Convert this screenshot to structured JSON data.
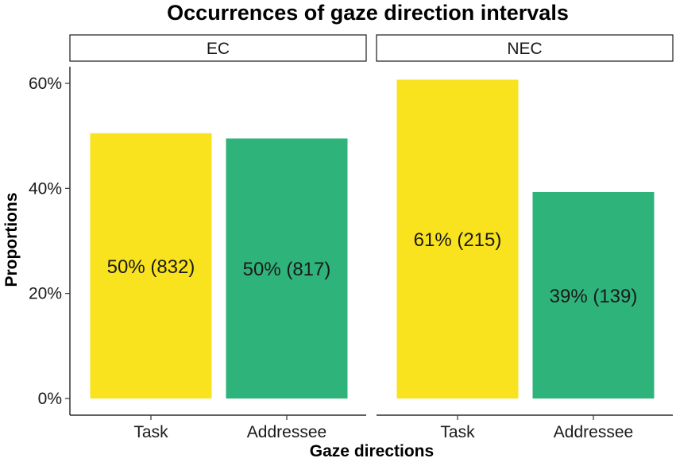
{
  "chart_data": {
    "type": "bar",
    "title": "Occurrences of gaze direction intervals",
    "xlabel": "Gaze directions",
    "ylabel": "Proportions",
    "ylim": [
      0,
      60
    ],
    "yticks": [
      "0%",
      "20%",
      "40%",
      "60%"
    ],
    "categories": [
      "Task",
      "Addressee"
    ],
    "colors": {
      "Task": "#F9E21E",
      "Addressee": "#2EB37B"
    },
    "panels": [
      {
        "name": "EC",
        "values": [
          50.5,
          49.5
        ],
        "labels": [
          "50% (832)",
          "50% (817)"
        ]
      },
      {
        "name": "NEC",
        "values": [
          60.7,
          39.3
        ],
        "labels": [
          "61% (215)",
          "39% (139)"
        ]
      }
    ],
    "grid": false,
    "legend": "none"
  }
}
